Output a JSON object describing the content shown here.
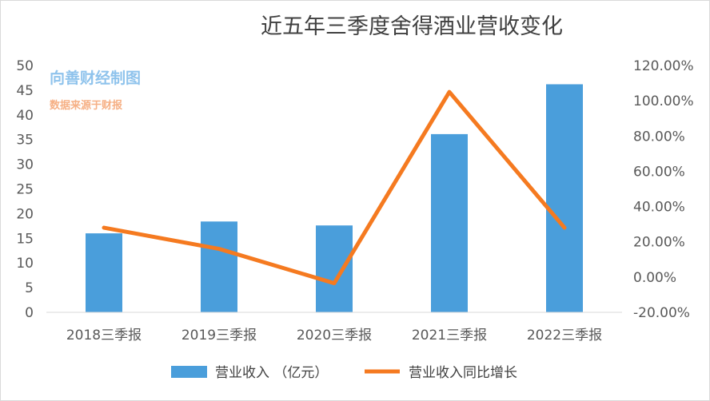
{
  "chart_data": {
    "type": "bar+line",
    "title": "近五年三季度舍得酒业营收变化",
    "categories": [
      "2018三季报",
      "2019三季报",
      "2020三季报",
      "2021三季报",
      "2022三季报"
    ],
    "series": [
      {
        "name": "营业收入 （亿元）",
        "type": "bar",
        "axis": "left",
        "color": "#4a9edb",
        "values": [
          16.0,
          18.4,
          17.6,
          36.1,
          46.2
        ]
      },
      {
        "name": "营业收入同比增长",
        "type": "line",
        "axis": "right",
        "color": "#f57a20",
        "values": [
          28.0,
          16.0,
          -3.5,
          105.0,
          28.0
        ]
      }
    ],
    "y_left": {
      "min": 0,
      "max": 50,
      "step": 5,
      "tick_labels": [
        "0",
        "5",
        "10",
        "15",
        "20",
        "25",
        "30",
        "35",
        "40",
        "45",
        "50"
      ]
    },
    "y_right": {
      "min": -20,
      "max": 120,
      "step": 20,
      "tick_labels": [
        "-20.00%",
        "0.00%",
        "20.00%",
        "40.00%",
        "60.00%",
        "80.00%",
        "100.00%",
        "120.00%"
      ]
    },
    "grid": false,
    "legend_position": "bottom"
  },
  "watermark": {
    "line1": "向善财经制图",
    "line2": "数据来源于财报",
    "color1": "#8fc3ec",
    "color2": "#f6b085"
  }
}
